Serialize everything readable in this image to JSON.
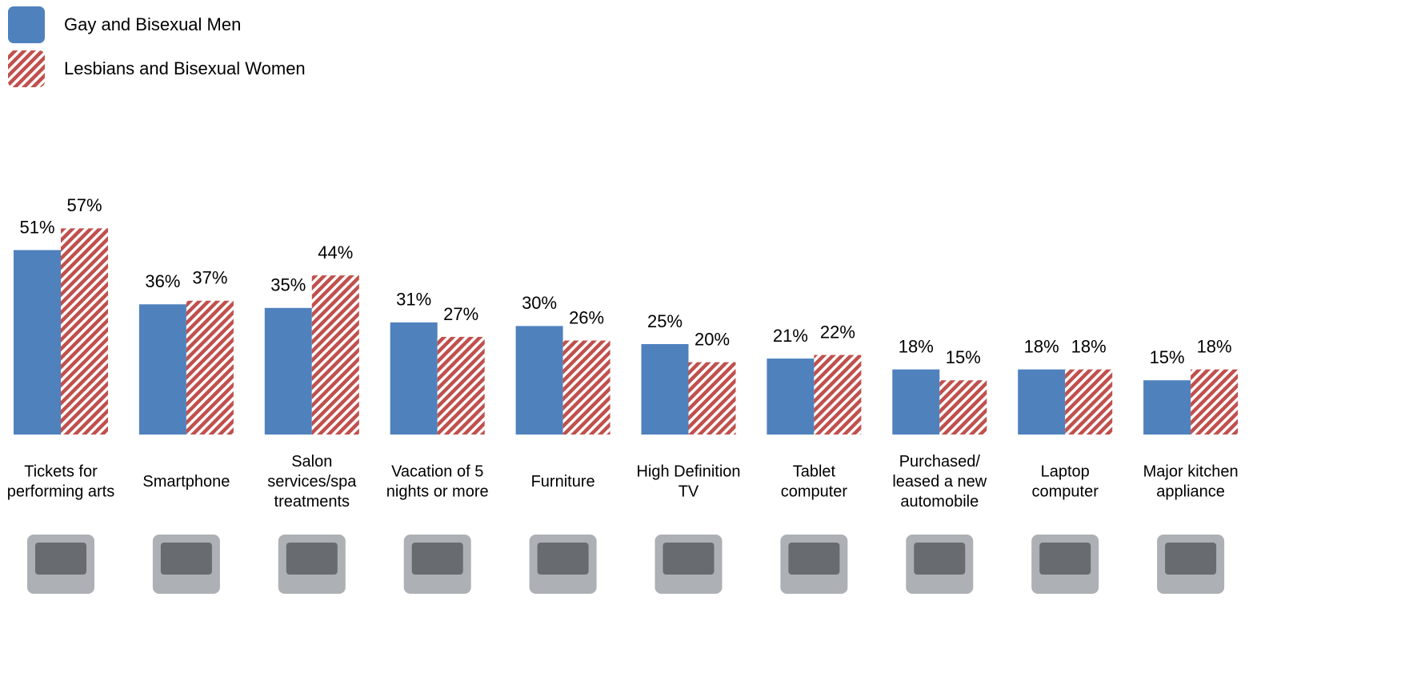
{
  "chart_data": {
    "type": "bar",
    "categories": [
      "Tickets for\nperforming arts",
      "Smartphone",
      "Salon\nservices/spa\ntreatments",
      "Vacation of 5\nnights or more",
      "Furniture",
      "High Definition\nTV",
      "Tablet\ncomputer",
      "Purchased/\nleased a new\nautomobile",
      "Laptop\ncomputer",
      "Major kitchen\nappliance"
    ],
    "series": [
      {
        "name": "Gay and Bisexual Men",
        "color": "#4f81bd",
        "values": [
          51,
          36,
          35,
          31,
          30,
          25,
          21,
          18,
          18,
          15
        ],
        "value_labels": [
          "51%",
          "36%",
          "35%",
          "31%",
          "30%",
          "25%",
          "21%",
          "18%",
          "18%",
          "15%"
        ]
      },
      {
        "name": "Lesbians and Bisexual Women",
        "color": "#c0504d",
        "values": [
          57,
          37,
          44,
          27,
          26,
          20,
          22,
          15,
          18,
          18
        ],
        "value_labels": [
          "57%",
          "37%",
          "44%",
          "27%",
          "26%",
          "20%",
          "22%",
          "15%",
          "18%",
          "18%"
        ]
      }
    ]
  }
}
